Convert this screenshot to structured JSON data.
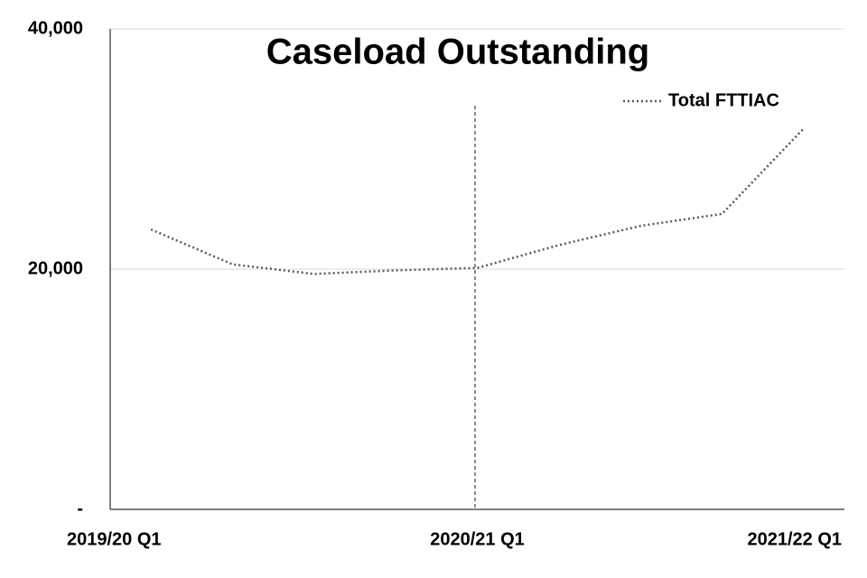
{
  "chart_data": {
    "type": "line",
    "title": "Caseload Outstanding",
    "categories": [
      "2019/20 Q1",
      null,
      null,
      null,
      "2020/21 Q1",
      null,
      null,
      null,
      "2021/22 Q1"
    ],
    "series": [
      {
        "name": "Total FTTIAC",
        "color": "#595959",
        "values": [
          23300,
          20400,
          19600,
          19900,
          20100,
          22000,
          23600,
          24600,
          31700
        ]
      }
    ],
    "ylim": [
      0,
      40000
    ],
    "yticks": [
      {
        "value": 0,
        "label": "-"
      },
      {
        "value": 20000,
        "label": "20,000"
      },
      {
        "value": 40000,
        "label": "40,000"
      }
    ],
    "grid": true,
    "legend": "top-right"
  }
}
